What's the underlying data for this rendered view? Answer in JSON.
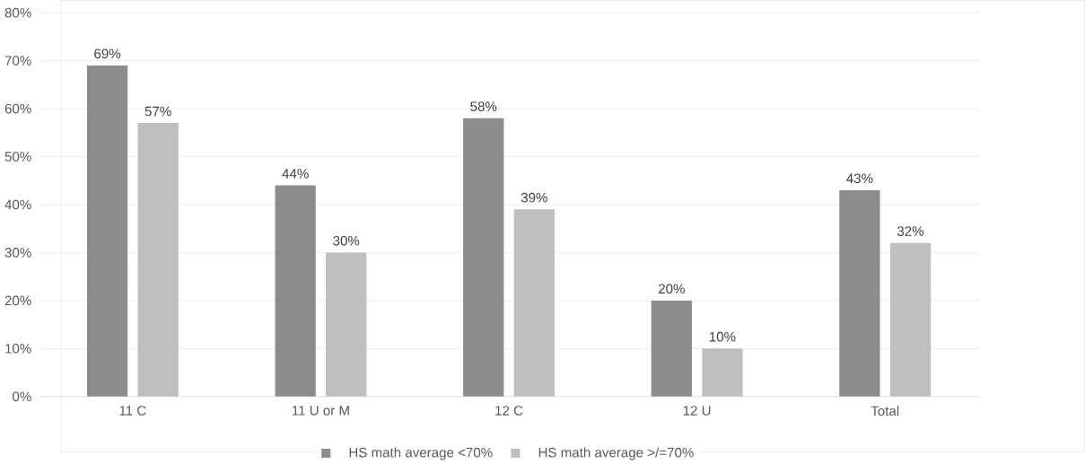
{
  "chart_data": {
    "type": "bar",
    "categories": [
      "11 C",
      "11 U or M",
      "12 C",
      "12 U",
      "Total"
    ],
    "series": [
      {
        "name": "HS math average <70%",
        "color": "#8c8c8c",
        "values": [
          69,
          44,
          58,
          20,
          43
        ],
        "value_labels": [
          "69%",
          "44%",
          "58%",
          "20%",
          "43%"
        ]
      },
      {
        "name": "HS math average >/=70%",
        "color": "#bfbfbf",
        "values": [
          57,
          30,
          39,
          10,
          32
        ],
        "value_labels": [
          "57%",
          "30%",
          "39%",
          "10%",
          "32%"
        ]
      }
    ],
    "ylim": [
      0,
      80
    ],
    "yticks": [
      {
        "value": 0,
        "label": "0%"
      },
      {
        "value": 10,
        "label": "10%"
      },
      {
        "value": 20,
        "label": "20%"
      },
      {
        "value": 30,
        "label": "30%"
      },
      {
        "value": 40,
        "label": "40%"
      },
      {
        "value": 50,
        "label": "50%"
      },
      {
        "value": 60,
        "label": "60%"
      },
      {
        "value": 70,
        "label": "70%"
      },
      {
        "value": 80,
        "label": "80%"
      }
    ],
    "grid": "y",
    "legend": "bottom"
  }
}
